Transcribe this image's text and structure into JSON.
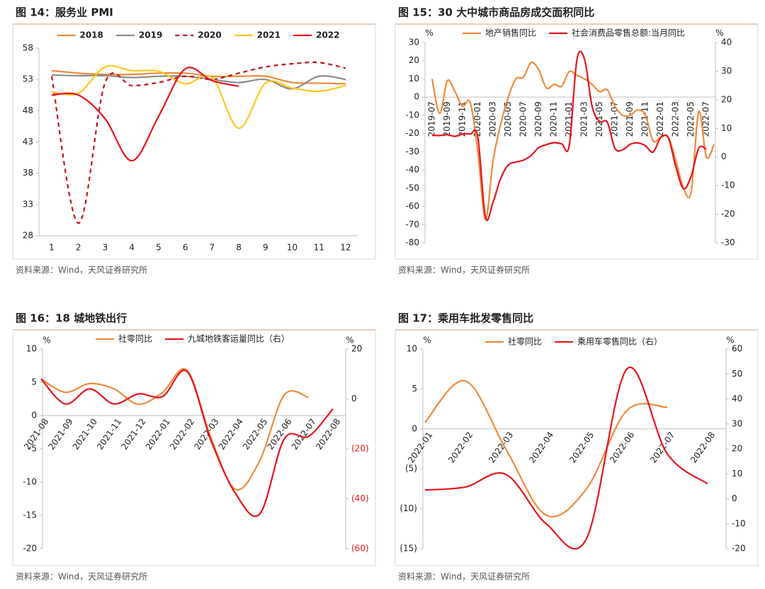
{
  "chart_data": [
    {
      "type": "line",
      "title": "图 14：服务业 PMI",
      "source": "资料来源：Wind，天风证券研究所",
      "categories": [
        "1",
        "2",
        "3",
        "4",
        "5",
        "6",
        "7",
        "8",
        "9",
        "10",
        "11",
        "12"
      ],
      "ylim": [
        28,
        58
      ],
      "yticks": [
        28,
        33,
        38,
        43,
        48,
        53,
        58
      ],
      "series": [
        {
          "name": "2018",
          "color": "#ee8a3c",
          "values": [
            54.4,
            54.0,
            53.8,
            53.8,
            54.0,
            54.0,
            53.5,
            53.5,
            53.5,
            52.5,
            52.4,
            52.3
          ]
        },
        {
          "name": "2019",
          "color": "#8c8c8c",
          "values": [
            53.7,
            53.6,
            53.6,
            53.3,
            53.5,
            53.5,
            53.0,
            52.5,
            53.0,
            51.5,
            53.5,
            53.0
          ]
        },
        {
          "name": "2020",
          "color": "#c0141c",
          "dashed": true,
          "values": [
            53.5,
            30.0,
            52.5,
            52.0,
            52.5,
            53.5,
            53.0,
            54.0,
            55.0,
            55.5,
            55.7,
            54.8
          ]
        },
        {
          "name": "2021",
          "color": "#ffc61e",
          "values": [
            51.0,
            50.8,
            55.0,
            54.4,
            54.3,
            52.3,
            53.3,
            45.2,
            52.4,
            51.6,
            51.1,
            52.0
          ]
        },
        {
          "name": "2022",
          "color": "#e8141c",
          "values": [
            50.5,
            50.5,
            46.7,
            40.0,
            47.1,
            54.7,
            52.8,
            51.9,
            null,
            null,
            null,
            null
          ]
        }
      ]
    },
    {
      "type": "line",
      "title": "图 15：30 大中城市商品房成交面积同比",
      "source": "资料来源：Wind，天风证券研究所",
      "y_label": "%",
      "y2_label": "%",
      "categories": [
        "2019-07",
        null,
        "2019-09",
        null,
        "2019-11",
        null,
        "2020-01",
        null,
        "2020-03",
        null,
        "2020-05",
        null,
        "2020-07",
        null,
        "2020-09",
        null,
        "2020-11",
        null,
        "2021-01",
        null,
        "2021-03",
        null,
        "2021-05",
        null,
        "2021-07",
        null,
        "2021-09",
        null,
        "2021-11",
        null,
        "2022-01",
        null,
        "2022-03",
        null,
        "2022-05",
        null,
        "2022-07",
        null
      ],
      "ylim": [
        -80,
        30
      ],
      "yticks": [
        -80,
        -70,
        -60,
        -50,
        -40,
        -30,
        -20,
        -10,
        0,
        10,
        20,
        30
      ],
      "y2lim": [
        -30,
        40
      ],
      "y2ticks": [
        -30,
        -20,
        -10,
        0,
        10,
        20,
        30,
        40
      ],
      "series": [
        {
          "name": "地产销售同比",
          "color": "#ee8a3c",
          "values": [
            10,
            -9,
            9,
            3,
            -5,
            -3,
            -30,
            -67,
            -35,
            -15,
            0,
            10,
            11,
            19,
            15,
            5,
            7,
            6,
            14,
            12,
            10,
            7,
            3,
            4,
            -5,
            -10,
            -10,
            -7,
            -10,
            -24,
            -22,
            -22,
            -35,
            -50,
            -52,
            -8,
            -33,
            -26
          ]
        },
        {
          "name": "社会消费品零售总额:当月同比",
          "color": "#e8141c",
          "axis": "y2",
          "values": [
            7.6,
            7.5,
            7.8,
            7.2,
            8,
            8,
            7,
            -21,
            -15.8,
            -7.5,
            -2.8,
            -1.8,
            -1.1,
            0.5,
            3.3,
            4.3,
            5,
            4.6,
            4,
            33.8,
            34.2,
            17.7,
            12.4,
            12.1,
            3,
            2.5,
            4.4,
            4.9,
            3.9,
            1.7,
            6.7,
            6.7,
            -3.5,
            -11.1,
            -6.7,
            3.1,
            2.7,
            null
          ]
        }
      ]
    },
    {
      "type": "line",
      "title": "图 16：18 城地铁出行",
      "source": "资料来源：Wind，天风证券研究所",
      "y_label": "%",
      "y2_label": "%",
      "categories": [
        "2021-08",
        "2021-09",
        "2021-10",
        "2021-11",
        "2021-12",
        "2022-01",
        "2022-02",
        "2022-03",
        "2022-04",
        "2022-05",
        "2022-06",
        "2022-07",
        "2022-08"
      ],
      "ylim": [
        -20,
        10
      ],
      "yticks": [
        -20,
        -15,
        -10,
        -5,
        0,
        5,
        10
      ],
      "y2lim": [
        -60,
        20
      ],
      "y2ticks": [
        {
          "value": -60,
          "label": "(60)"
        },
        {
          "value": -40,
          "label": "(40)"
        },
        {
          "value": -20,
          "label": "(20)"
        },
        0,
        20
      ],
      "y2_negative_color": "#e8141c",
      "series": [
        {
          "name": "社零同比",
          "color": "#ee8a3c",
          "values": [
            5.5,
            3.5,
            4.8,
            4.0,
            1.7,
            3.5,
            6.8,
            -3.5,
            -11.1,
            -6.7,
            3.1,
            2.7,
            null
          ]
        },
        {
          "name": "九城地铁客运量同比（右）",
          "color": "#e8141c",
          "axis": "y2",
          "values": [
            8,
            -2,
            4,
            -2,
            2,
            1,
            11,
            -17,
            -38,
            -46,
            -16,
            -15,
            -4
          ]
        }
      ]
    },
    {
      "type": "line",
      "title": "图 17：乘用车批发零售同比",
      "source": "资料来源：Wind，天风证券研究所",
      "y_label": "%",
      "y2_label": "%",
      "categories": [
        "2022-01",
        "2022-02",
        "2022-03",
        "2022-04",
        "2022-05",
        "2022-06",
        "2022-07",
        "2022-08"
      ],
      "ylim": [
        -15,
        10
      ],
      "yticks": [
        {
          "value": -15,
          "label": "(15)"
        },
        {
          "value": -10,
          "label": "(10)"
        },
        {
          "value": -5,
          "label": "(5)"
        },
        0,
        5,
        10
      ],
      "y2lim": [
        -20,
        60
      ],
      "y2ticks": [
        -20,
        -10,
        0,
        10,
        20,
        30,
        40,
        50,
        60
      ],
      "series": [
        {
          "name": "社零同比",
          "color": "#ee8a3c",
          "values": [
            0.8,
            6.0,
            -2.5,
            -10.8,
            -7.5,
            2.3,
            2.7,
            null
          ]
        },
        {
          "name": "乘用车零售同比（右）",
          "color": "#e8141c",
          "axis": "y2",
          "values": [
            3.5,
            4.7,
            9.8,
            -10,
            -16,
            52,
            18,
            6
          ]
        }
      ]
    }
  ]
}
